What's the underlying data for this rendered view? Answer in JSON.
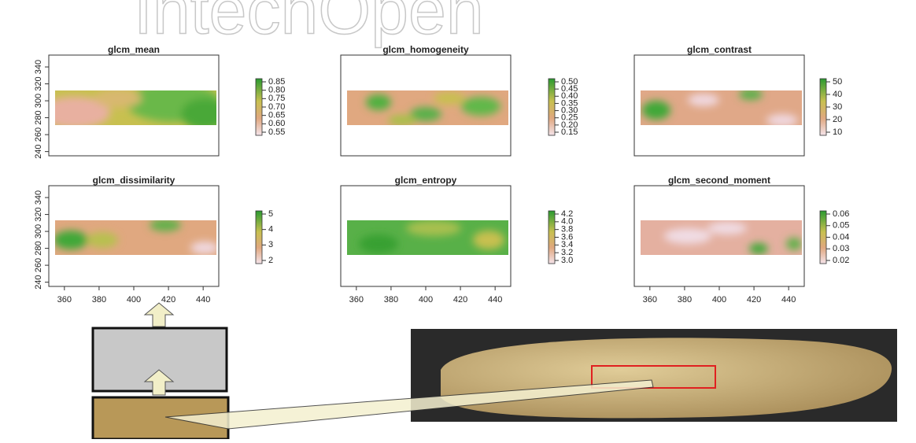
{
  "watermark": "IntechOpen",
  "figure": {
    "xlim": [
      351,
      449
    ],
    "ylim": [
      235,
      354
    ],
    "panels": [
      {
        "title": "glcm_mean",
        "yticks": [
          240,
          260,
          280,
          300,
          320,
          340
        ],
        "colorbar_ticks": [
          0.55,
          {
            "value": 0.6,
            "label": "0.60"
          },
          0.65,
          {
            "value": 0.7,
            "label": "0.70"
          },
          0.75,
          {
            "value": 0.8,
            "label": "0.80"
          },
          0.85
        ]
      },
      {
        "title": "glcm_homogeneity",
        "colorbar_ticks": [
          0.15,
          {
            "value": 0.2,
            "label": "0.20"
          },
          0.25,
          {
            "value": 0.3,
            "label": "0.30"
          },
          0.35,
          {
            "value": 0.4,
            "label": "0.40"
          },
          0.45,
          {
            "value": 0.5,
            "label": "0.50"
          }
        ]
      },
      {
        "title": "glcm_contrast",
        "colorbar_ticks": [
          10,
          20,
          30,
          40,
          50
        ]
      },
      {
        "title": "glcm_dissimilarity",
        "yticks": [
          240,
          260,
          280,
          300,
          320,
          340
        ],
        "xticks": [
          360,
          380,
          400,
          420,
          440
        ],
        "colorbar_ticks": [
          2,
          3,
          4,
          5
        ]
      },
      {
        "title": "glcm_entropy",
        "xticks": [
          360,
          380,
          400,
          420,
          440
        ],
        "colorbar_ticks": [
          {
            "value": 3,
            "label": "3.0"
          },
          3.2,
          3.4,
          3.6,
          3.8,
          {
            "value": 4,
            "label": "4.0"
          },
          4.2
        ]
      },
      {
        "title": "glcm_second_moment",
        "xticks": [
          360,
          380,
          400,
          420,
          440
        ],
        "colorbar_ticks": [
          0.02,
          0.03,
          0.04,
          0.05,
          0.06
        ]
      }
    ]
  }
}
